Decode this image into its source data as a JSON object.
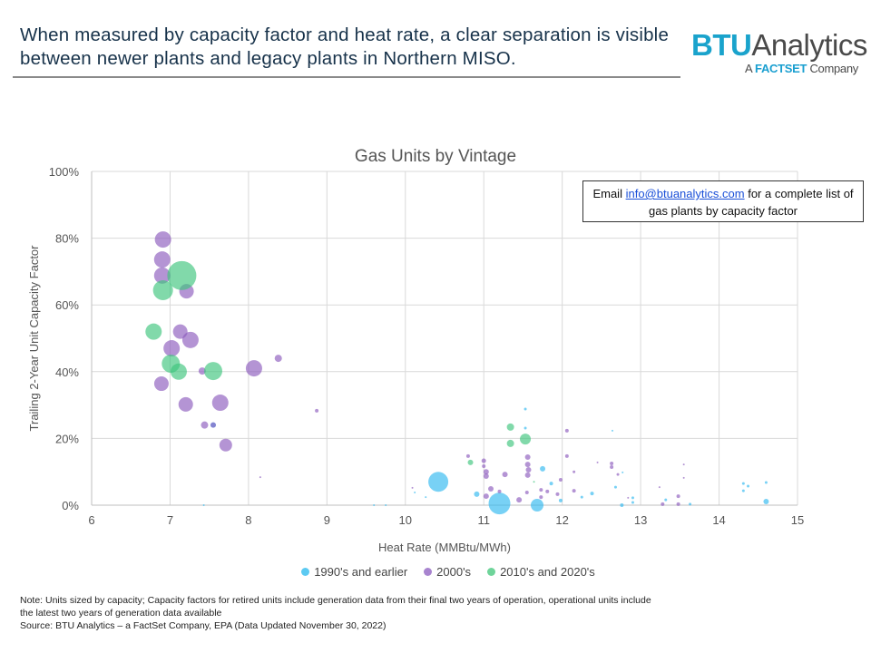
{
  "header": {
    "headline": "When measured by capacity factor and heat rate, a clear separation is visible between newer plants and legacy plants in Northern MISO.",
    "logo": {
      "brand_bold": "BTU",
      "brand_light": "Analytics",
      "tagline_prefix": "A",
      "tagline_brand": "FACTSET",
      "tagline_suffix": "Company"
    }
  },
  "callout": {
    "prefix": "Email",
    "link": "info@btuanalytics.com",
    "suffix": "for a complete list of gas plants by capacity factor"
  },
  "notes": {
    "line1": "Note: Units sized by capacity; Capacity factors for retired units include generation data from their final two years of operation, operational units include",
    "line2": "the latest two years of generation data available",
    "line3": "Source: BTU Analytics – a FactSet Company, EPA (Data Updated November 30, 2022)"
  },
  "chart_data": {
    "type": "scatter",
    "title": "Gas Units by Vintage",
    "xlabel": "Heat Rate (MMBtu/MWh)",
    "ylabel": "Trailing 2-Year Unit Capacity Factor",
    "xlim": [
      6,
      15
    ],
    "ylim": [
      0,
      100
    ],
    "x_ticks": [
      "6",
      "7",
      "8",
      "9",
      "10",
      "11",
      "12",
      "13",
      "14",
      "15"
    ],
    "y_ticks": [
      "0%",
      "20%",
      "40%",
      "60%",
      "80%",
      "100%"
    ],
    "grid": true,
    "legend_position": "bottom",
    "bubble_size_note": "relative capacity",
    "series": [
      {
        "name": "1990's and earlier",
        "color": "#2fb8f0",
        "points": [
          [
            10.42,
            7.0,
            11
          ],
          [
            11.2,
            0.5,
            12
          ],
          [
            11.68,
            0,
            7
          ],
          [
            11.53,
            28.8,
            1.5
          ],
          [
            11.53,
            23.1,
            1.5
          ],
          [
            12.64,
            22.3,
            1
          ],
          [
            11.75,
            10.9,
            3
          ],
          [
            11.86,
            6.5,
            2
          ],
          [
            10.91,
            3.3,
            3
          ],
          [
            12.38,
            3.5,
            2
          ],
          [
            12.68,
            5.4,
            1.5
          ],
          [
            12.9,
            2.2,
            1.5
          ],
          [
            14.31,
            6.5,
            1.5
          ],
          [
            14.37,
            5.7,
            1.5
          ],
          [
            14.6,
            6.8,
            1.5
          ],
          [
            14.6,
            1.1,
            3
          ],
          [
            14.31,
            4.3,
            1.5
          ],
          [
            13.32,
            1.6,
            1.5
          ],
          [
            12.76,
            0,
            2
          ],
          [
            12.25,
            2.4,
            1.5
          ],
          [
            10.12,
            3.8,
            1
          ],
          [
            10.26,
            2.4,
            1
          ],
          [
            11.98,
            1.4,
            2
          ],
          [
            12.9,
            0.8,
            1.5
          ],
          [
            12.77,
            9.8,
            1
          ],
          [
            13.63,
            0.3,
            1.5
          ],
          [
            9.75,
            0,
            1
          ],
          [
            9.6,
            0,
            1
          ],
          [
            7.43,
            0,
            1
          ],
          [
            7.55,
            24,
            3
          ]
        ]
      },
      {
        "name": "2000's",
        "color": "#8c5bbd",
        "points": [
          [
            6.91,
            79.6,
            9
          ],
          [
            6.9,
            73.6,
            9
          ],
          [
            6.9,
            68.8,
            9
          ],
          [
            7.21,
            64.1,
            8
          ],
          [
            7.13,
            52,
            8
          ],
          [
            7.26,
            49.5,
            9
          ],
          [
            7.02,
            47,
            9
          ],
          [
            7.41,
            40.2,
            4
          ],
          [
            8.07,
            41,
            9
          ],
          [
            8.38,
            44,
            4
          ],
          [
            6.89,
            36.4,
            8
          ],
          [
            7.2,
            30.2,
            8
          ],
          [
            7.64,
            30.7,
            9
          ],
          [
            7.44,
            24,
            4
          ],
          [
            7.55,
            24,
            3
          ],
          [
            7.71,
            18,
            7
          ],
          [
            8.15,
            8.4,
            1
          ],
          [
            8.87,
            28.3,
            2
          ],
          [
            12.06,
            22.3,
            2
          ],
          [
            12.06,
            14.7,
            2
          ],
          [
            10.8,
            14.7,
            2
          ],
          [
            11.0,
            13.3,
            2.5
          ],
          [
            11.0,
            11.7,
            2
          ],
          [
            11.03,
            10,
            3
          ],
          [
            11.03,
            8.7,
            3
          ],
          [
            11.27,
            9.2,
            3
          ],
          [
            11.56,
            14.4,
            3
          ],
          [
            11.56,
            12.2,
            3
          ],
          [
            11.57,
            10.6,
            3
          ],
          [
            11.56,
            9.0,
            3
          ],
          [
            11.98,
            7.6,
            2
          ],
          [
            11.09,
            4.9,
            3
          ],
          [
            11.2,
            4.1,
            2
          ],
          [
            11.03,
            2.7,
            3
          ],
          [
            11.45,
            1.6,
            3
          ],
          [
            11.55,
            3.8,
            2
          ],
          [
            11.73,
            4.6,
            2
          ],
          [
            11.81,
            4.1,
            2
          ],
          [
            11.73,
            2.4,
            2
          ],
          [
            11.94,
            3.3,
            2
          ],
          [
            12.15,
            4.3,
            2
          ],
          [
            12.63,
            12.5,
            2
          ],
          [
            12.63,
            11.4,
            2
          ],
          [
            12.71,
            9.2,
            1.5
          ],
          [
            12.84,
            2.2,
            1
          ],
          [
            13.24,
            5.4,
            1
          ],
          [
            13.48,
            2.7,
            2
          ],
          [
            13.55,
            12.2,
            1
          ],
          [
            13.55,
            8.2,
            1
          ],
          [
            13.28,
            0.3,
            2
          ],
          [
            13.48,
            0.3,
            2
          ],
          [
            10.09,
            5.2,
            1
          ],
          [
            12.15,
            10,
            1.5
          ],
          [
            12.45,
            12.8,
            1
          ]
        ]
      },
      {
        "name": "2010's and 2020's",
        "color": "#3ec47c",
        "points": [
          [
            7.15,
            68.8,
            16
          ],
          [
            6.91,
            64.4,
            11
          ],
          [
            6.79,
            52,
            9
          ],
          [
            7.01,
            42.4,
            10
          ],
          [
            7.11,
            40,
            9
          ],
          [
            7.55,
            40.2,
            10
          ],
          [
            11.34,
            23.4,
            4
          ],
          [
            11.34,
            18.5,
            4
          ],
          [
            11.53,
            19.8,
            6
          ],
          [
            10.83,
            12.8,
            3
          ],
          [
            11.64,
            7.0,
            1
          ]
        ]
      }
    ]
  }
}
